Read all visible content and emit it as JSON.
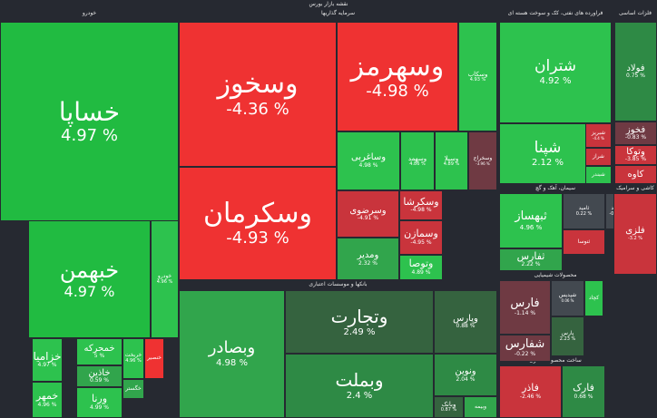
{
  "title": "نقشه بازار بورس",
  "sectors": {
    "car": "خودرو",
    "investments": "سرمایه گذاریها",
    "oil": "فراورده های نفتی، کک و سوخت هسته ای",
    "metal": "فلزات اساسی",
    "chemicals": "محصولات شیمیایی",
    "banks": "بانکها و موسسات اعتباری",
    "cement": "سیمان، آهک و گچ",
    "rowmetal": "ساخت محصولات فلزی",
    "mining": "کانه فلزی",
    "rowtile": "کاشی و سرامیک"
  },
  "tiles": [
    {
      "name": "خساپا",
      "value": "4.97 %",
      "cls": "gB"
    },
    {
      "name": "خبهمن",
      "value": "4.97 %",
      "cls": "gB"
    },
    {
      "name": "خزامیا",
      "value": "4.97 %",
      "cls": "g1"
    },
    {
      "name": "خمحرکه",
      "value": "5 %",
      "cls": "g1"
    },
    {
      "name": "خاذین",
      "value": "0.59 %",
      "cls": "g2"
    },
    {
      "name": "خمهر",
      "value": "4.96 %",
      "cls": "g1"
    },
    {
      "name": "ورنا",
      "value": "4.99 %",
      "cls": "g1"
    },
    {
      "name": "خریخت",
      "value": "4.96 %",
      "cls": "g1"
    },
    {
      "name": "خودرو",
      "value": "4.96 %",
      "cls": "g1"
    },
    {
      "name": "خگستر",
      "value": "",
      "cls": "g2"
    },
    {
      "name": "خنصیر",
      "value": "",
      "cls": "rB"
    },
    {
      "name": "وسخوز",
      "value": "-4.36 %",
      "cls": "rB"
    },
    {
      "name": "وسکرمان",
      "value": "-4.93 %",
      "cls": "rB"
    },
    {
      "name": "وسهرمز",
      "value": "-4.98 %",
      "cls": "rB"
    },
    {
      "name": "وسکاب",
      "value": "4.93 %",
      "cls": "g1"
    },
    {
      "name": "وساغربی",
      "value": "4.98 %",
      "cls": "g1"
    },
    {
      "name": "وسهمد",
      "value": "4.86 %",
      "cls": "g1"
    },
    {
      "name": "وسیلا",
      "value": "4.89 %",
      "cls": "g1"
    },
    {
      "name": "وسخراج",
      "value": "-3.96 %",
      "cls": "rD"
    },
    {
      "name": "وسرضوی",
      "value": "-4.91 %",
      "cls": "r1"
    },
    {
      "name": "وسکرشا",
      "value": "-4.98 %",
      "cls": "r1"
    },
    {
      "name": "وسمازن",
      "value": "-4.95 %",
      "cls": "r1"
    },
    {
      "name": "ومدیر",
      "value": "2.32 %",
      "cls": "g2"
    },
    {
      "name": "وتوصا",
      "value": "4.89 %",
      "cls": "g1"
    },
    {
      "name": "شتران",
      "value": "4.92 %",
      "cls": "g1"
    },
    {
      "name": "شپنا",
      "value": "2.12 %",
      "cls": "g1"
    },
    {
      "name": "شبریز",
      "value": "-4.4 %",
      "cls": "r1"
    },
    {
      "name": "شراز",
      "value": "",
      "cls": "r1"
    },
    {
      "name": "شبندر",
      "value": "",
      "cls": "g1"
    },
    {
      "name": "فولاد",
      "value": "0.75 %",
      "cls": "g3"
    },
    {
      "name": "فخوز",
      "value": "-0.83 %",
      "cls": "rD"
    },
    {
      "name": "وتوکا",
      "value": "-3.85 %",
      "cls": "r1"
    },
    {
      "name": "کاوه",
      "value": "",
      "cls": "r1"
    },
    {
      "name": "ثبهساز",
      "value": "4.96 %",
      "cls": "g1"
    },
    {
      "name": "ثفارس",
      "value": "2.22 %",
      "cls": "g2"
    },
    {
      "name": "ثامید",
      "value": "0.22 %",
      "cls": "nt"
    },
    {
      "name": "ثشاهد",
      "value": "-0.58 %",
      "cls": "nt"
    },
    {
      "name": "ثنوسا",
      "value": "",
      "cls": "r1"
    },
    {
      "name": "وبصادر",
      "value": "4.98 %",
      "cls": "g2"
    },
    {
      "name": "وتجارت",
      "value": "2.49 %",
      "cls": "gD"
    },
    {
      "name": "وبملت",
      "value": "2.4 %",
      "cls": "g3"
    },
    {
      "name": "وپارس",
      "value": "0.88 %",
      "cls": "gD"
    },
    {
      "name": "ونوین",
      "value": "2.04 %",
      "cls": "g3"
    },
    {
      "name": "وبانک",
      "value": "0.87 %",
      "cls": "gD"
    },
    {
      "name": "وبیمه",
      "value": "",
      "cls": "g2"
    },
    {
      "name": "فارس",
      "value": "-1.14 %",
      "cls": "rD"
    },
    {
      "name": "شفارس",
      "value": "-0.22 %",
      "cls": "rD"
    },
    {
      "name": "شپدیس",
      "value": "0.06 %",
      "cls": "nt"
    },
    {
      "name": "پارس",
      "value": "2.23 %",
      "cls": "gD"
    },
    {
      "name": "فاذر",
      "value": "-2.46 %",
      "cls": "r1"
    },
    {
      "name": "فارک",
      "value": "0.68 %",
      "cls": "g3"
    },
    {
      "name": "فلزی",
      "value": "-3.2 %",
      "cls": "r1"
    },
    {
      "name": "کچاد",
      "value": "",
      "cls": "g1"
    }
  ]
}
